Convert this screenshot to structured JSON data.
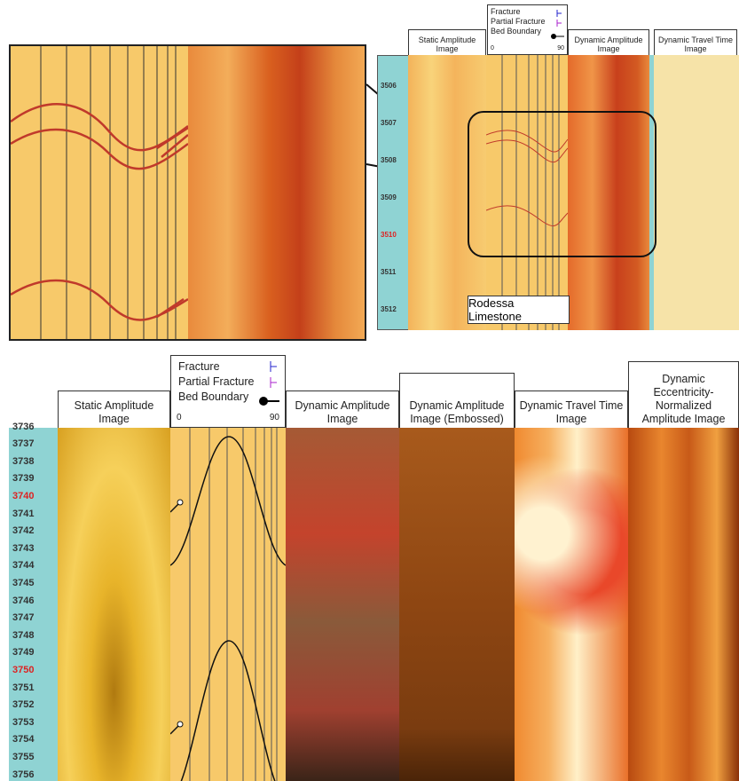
{
  "top": {
    "headers": [
      "Static Amplitude Image",
      "Dynamic Amplitude Image",
      "Dynamic Travel Time Image"
    ],
    "legend": {
      "items": [
        "Fracture",
        "Partial Fracture",
        "Bed Boundary"
      ],
      "scale_min": "0",
      "scale_max": "90"
    },
    "depths": [
      {
        "text": "3506",
        "color": "#333"
      },
      {
        "text": "3507",
        "color": "#333"
      },
      {
        "text": "3508",
        "color": "#333"
      },
      {
        "text": "3509",
        "color": "#333"
      },
      {
        "text": "3510",
        "color": "#d22"
      },
      {
        "text": "3511",
        "color": "#333"
      },
      {
        "text": "3512",
        "color": "#333"
      }
    ],
    "label": "Rodessa Limestone"
  },
  "bottom": {
    "headers": [
      "Static Amplitude Image",
      "Dynamic Amplitude Image",
      "Dynamic Amplitude Image (Embossed)",
      "Dynamic Travel Time Image",
      "Dynamic Eccentricity-Normalized Amplitude Image"
    ],
    "legend": {
      "items": [
        "Fracture",
        "Partial Fracture",
        "Bed Boundary"
      ],
      "scale_min": "0",
      "scale_max": "90"
    },
    "depths": [
      {
        "text": "3736",
        "color": "#333"
      },
      {
        "text": "3737",
        "color": "#333"
      },
      {
        "text": "3738",
        "color": "#333"
      },
      {
        "text": "3739",
        "color": "#333"
      },
      {
        "text": "3740",
        "color": "#d22"
      },
      {
        "text": "3741",
        "color": "#333"
      },
      {
        "text": "3742",
        "color": "#333"
      },
      {
        "text": "3743",
        "color": "#333"
      },
      {
        "text": "3744",
        "color": "#333"
      },
      {
        "text": "3745",
        "color": "#333"
      },
      {
        "text": "3746",
        "color": "#333"
      },
      {
        "text": "3747",
        "color": "#333"
      },
      {
        "text": "3748",
        "color": "#333"
      },
      {
        "text": "3749",
        "color": "#333"
      },
      {
        "text": "3750",
        "color": "#d22"
      },
      {
        "text": "3751",
        "color": "#333"
      },
      {
        "text": "3752",
        "color": "#333"
      },
      {
        "text": "3753",
        "color": "#333"
      },
      {
        "text": "3754",
        "color": "#333"
      },
      {
        "text": "3755",
        "color": "#333"
      },
      {
        "text": "3756",
        "color": "#333"
      }
    ]
  }
}
